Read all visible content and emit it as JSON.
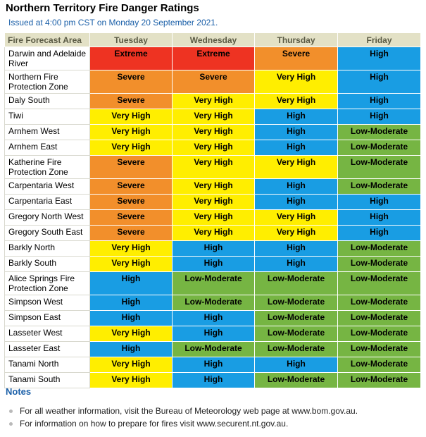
{
  "title": "Northern Territory Fire Danger Ratings",
  "issued": "Issued at 4:00 pm CST on Monday 20 September 2021.",
  "table": {
    "columns": [
      "Fire Forecast Area",
      "Tuesday",
      "Wednesday",
      "Thursday",
      "Friday"
    ],
    "rows": [
      {
        "area": "Darwin and Adelaide River",
        "ratings": [
          "Extreme",
          "Extreme",
          "Severe",
          "High"
        ]
      },
      {
        "area": "Northern Fire Protection Zone",
        "ratings": [
          "Severe",
          "Severe",
          "Very High",
          "High"
        ]
      },
      {
        "area": "Daly South",
        "ratings": [
          "Severe",
          "Very High",
          "Very High",
          "High"
        ]
      },
      {
        "area": "Tiwi",
        "ratings": [
          "Very High",
          "Very High",
          "High",
          "High"
        ]
      },
      {
        "area": "Arnhem West",
        "ratings": [
          "Very High",
          "Very High",
          "High",
          "Low-Moderate"
        ]
      },
      {
        "area": "Arnhem East",
        "ratings": [
          "Very High",
          "Very High",
          "High",
          "Low-Moderate"
        ]
      },
      {
        "area": "Katherine Fire Protection Zone",
        "ratings": [
          "Severe",
          "Very High",
          "Very High",
          "Low-Moderate"
        ]
      },
      {
        "area": "Carpentaria West",
        "ratings": [
          "Severe",
          "Very High",
          "High",
          "Low-Moderate"
        ]
      },
      {
        "area": "Carpentaria East",
        "ratings": [
          "Severe",
          "Very High",
          "High",
          "High"
        ]
      },
      {
        "area": "Gregory North West",
        "ratings": [
          "Severe",
          "Very High",
          "Very High",
          "High"
        ]
      },
      {
        "area": "Gregory South East",
        "ratings": [
          "Severe",
          "Very High",
          "Very High",
          "High"
        ]
      },
      {
        "area": "Barkly North",
        "ratings": [
          "Very High",
          "High",
          "High",
          "Low-Moderate"
        ]
      },
      {
        "area": "Barkly South",
        "ratings": [
          "Very High",
          "High",
          "High",
          "Low-Moderate"
        ]
      },
      {
        "area": "Alice Springs Fire Protection Zone",
        "ratings": [
          "High",
          "Low-Moderate",
          "Low-Moderate",
          "Low-Moderate"
        ]
      },
      {
        "area": "Simpson West",
        "ratings": [
          "High",
          "Low-Moderate",
          "Low-Moderate",
          "Low-Moderate"
        ]
      },
      {
        "area": "Simpson East",
        "ratings": [
          "High",
          "High",
          "Low-Moderate",
          "Low-Moderate"
        ]
      },
      {
        "area": "Lasseter West",
        "ratings": [
          "Very High",
          "High",
          "Low-Moderate",
          "Low-Moderate"
        ]
      },
      {
        "area": "Lasseter East",
        "ratings": [
          "High",
          "Low-Moderate",
          "Low-Moderate",
          "Low-Moderate"
        ]
      },
      {
        "area": "Tanami North",
        "ratings": [
          "Very High",
          "High",
          "High",
          "Low-Moderate"
        ]
      },
      {
        "area": "Tanami South",
        "ratings": [
          "Very High",
          "High",
          "Low-Moderate",
          "Low-Moderate"
        ]
      }
    ]
  },
  "rating_colors": {
    "Extreme": "#ee3322",
    "Severe": "#f28f2b",
    "Very High": "#ffee00",
    "High": "#199de3",
    "Low-Moderate": "#76b543"
  },
  "notes": {
    "heading": "Notes",
    "items": [
      "For all weather information, visit the Bureau of Meteorology web page at www.bom.gov.au.",
      "For information on how to prepare for fires visit www.securent.nt.gov.au."
    ]
  }
}
